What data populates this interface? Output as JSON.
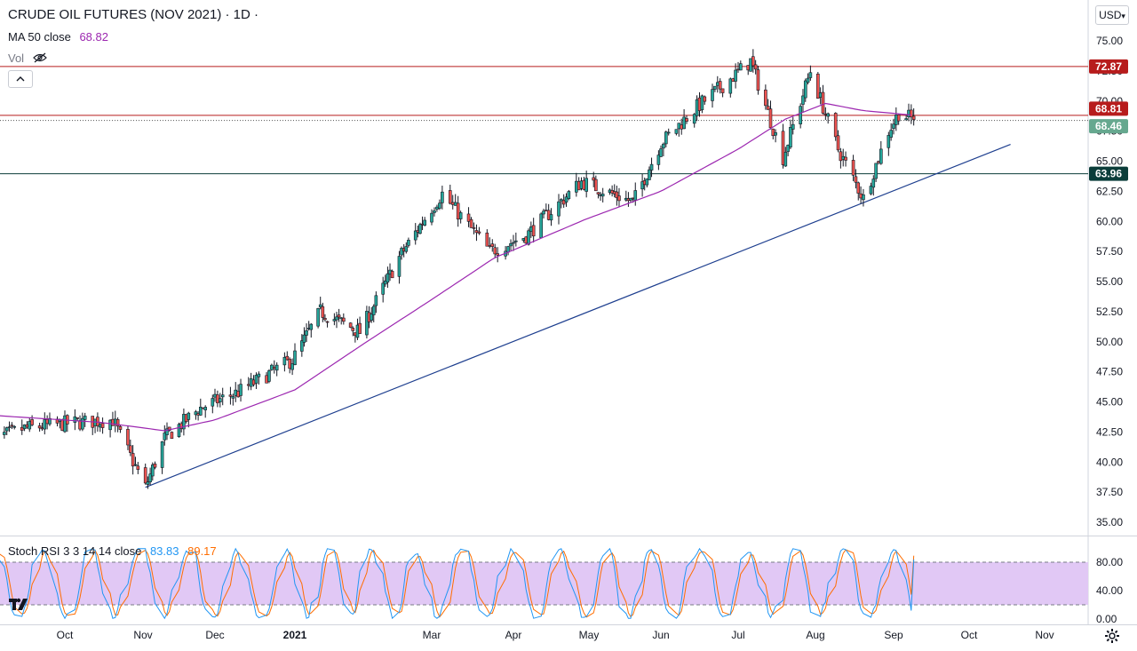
{
  "header": {
    "title": "CRUDE OIL FUTURES (NOV 2021) · 1D ·",
    "ma_label": "MA 50 close",
    "ma_value": "68.82",
    "vol_label": "Vol",
    "currency": "USD",
    "currency_caret": "▾"
  },
  "colors": {
    "up": "#26a69a",
    "down": "#ef5350",
    "ma": "#9c27b0",
    "hline_red": "#b71c1c",
    "hline_green": "#0b3d3a",
    "trendline": "#1e3f8f",
    "rsi_k": "#2196f3",
    "rsi_d": "#ff6d00",
    "rsi_band": "#e1c8f5"
  },
  "price_axis": {
    "ticks": [
      "75.00",
      "72.50",
      "70.00",
      "67.50",
      "65.00",
      "62.50",
      "60.00",
      "57.50",
      "55.00",
      "52.50",
      "50.00",
      "47.50",
      "45.00",
      "42.50",
      "40.00",
      "37.50",
      "35.00"
    ],
    "tick_values": [
      75,
      72.5,
      70,
      67.5,
      65,
      62.5,
      60,
      57.5,
      55,
      52.5,
      50,
      47.5,
      45,
      42.5,
      40,
      37.5,
      35
    ]
  },
  "time_axis": {
    "labels": [
      "Oct",
      "Nov",
      "Dec",
      "2021",
      "Mar",
      "Apr",
      "May",
      "Jun",
      "Jul",
      "Aug",
      "Sep",
      "Oct",
      "Nov"
    ]
  },
  "price_labels": {
    "resistance_top": "72.87",
    "ma_tag": "68.81",
    "last_price": "68.46",
    "support": "63.96"
  },
  "rsi": {
    "title": "Stoch RSI 3 3 14 14 close",
    "k_value": "83.83",
    "d_value": "89.17",
    "ticks": [
      "80.00",
      "40.00",
      "0.00"
    ],
    "upper_band": 80,
    "lower_band": 20
  },
  "chart_data": {
    "type": "candlestick",
    "title": "CRUDE OIL FUTURES (NOV 2021)",
    "interval": "1D",
    "ylim": [
      34,
      78
    ],
    "grid": false,
    "price_keypoints": [
      [
        "2020-09-01",
        41.8
      ],
      [
        "2020-09-15",
        42.8
      ],
      [
        "2020-10-01",
        43.2
      ],
      [
        "2020-10-20",
        43.5
      ],
      [
        "2020-11-02",
        37.9
      ],
      [
        "2020-11-10",
        42.0
      ],
      [
        "2020-11-25",
        44.5
      ],
      [
        "2020-12-10",
        45.8
      ],
      [
        "2020-12-31",
        48.5
      ],
      [
        "2021-01-12",
        52.5
      ],
      [
        "2021-01-29",
        50.8
      ],
      [
        "2021-02-15",
        57.0
      ],
      [
        "2021-03-05",
        62.3
      ],
      [
        "2021-03-23",
        57.5
      ],
      [
        "2021-04-06",
        58.8
      ],
      [
        "2021-04-28",
        63.3
      ],
      [
        "2021-05-20",
        61.6
      ],
      [
        "2021-06-01",
        66.5
      ],
      [
        "2021-06-15",
        69.5
      ],
      [
        "2021-07-06",
        73.3
      ],
      [
        "2021-07-19",
        65.3
      ],
      [
        "2021-07-30",
        72.5
      ],
      [
        "2021-08-10",
        66.0
      ],
      [
        "2021-08-20",
        61.9
      ],
      [
        "2021-08-30",
        67.5
      ],
      [
        "2021-09-03",
        69.0
      ],
      [
        "2021-09-09",
        68.46
      ]
    ],
    "ma50_keypoints": [
      [
        "2020-09-01",
        43.9
      ],
      [
        "2020-10-15",
        43.3
      ],
      [
        "2020-11-10",
        42.6
      ],
      [
        "2020-12-01",
        43.5
      ],
      [
        "2021-01-01",
        46.0
      ],
      [
        "2021-02-01",
        50.0
      ],
      [
        "2021-03-01",
        53.5
      ],
      [
        "2021-03-25",
        57.0
      ],
      [
        "2021-04-30",
        60.2
      ],
      [
        "2021-06-01",
        62.5
      ],
      [
        "2021-07-01",
        66.0
      ],
      [
        "2021-07-20",
        68.5
      ],
      [
        "2021-08-05",
        69.8
      ],
      [
        "2021-08-20",
        69.2
      ],
      [
        "2021-09-09",
        68.82
      ]
    ],
    "horizontal_levels": [
      72.87,
      68.81,
      63.96
    ],
    "trendline": {
      "start": [
        "2020-11-02",
        37.9
      ],
      "end": [
        "2021-10-18",
        66.4
      ]
    },
    "stoch_rsi_oscillation": {
      "period_days": [
        10,
        18
      ],
      "range": [
        2,
        98
      ],
      "k_last": 83.83,
      "d_last": 89.17
    }
  }
}
